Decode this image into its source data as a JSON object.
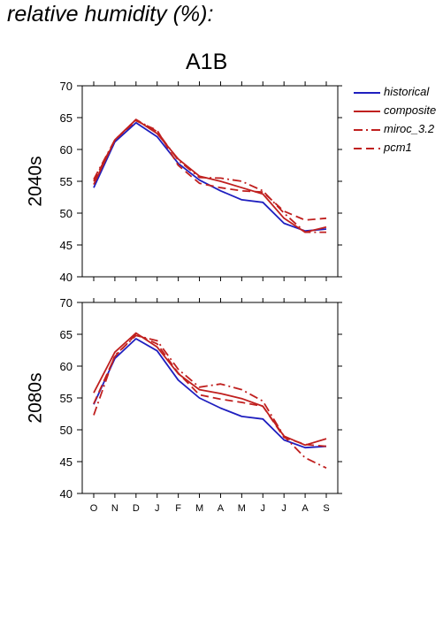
{
  "heading": "relative humidity (%):",
  "scenario": "A1B",
  "legend": [
    {
      "name": "historical",
      "color": "#1f1fbf",
      "dash": "solid"
    },
    {
      "name": "composite",
      "color": "#c0201f",
      "dash": "solid"
    },
    {
      "name": "miroc_3.2",
      "color": "#c0201f",
      "dash": "dashdot"
    },
    {
      "name": "pcm1",
      "color": "#c0201f",
      "dash": "dashed"
    }
  ],
  "chart_data": [
    {
      "type": "line",
      "ylabel": "2040s",
      "categories": [
        "O",
        "N",
        "D",
        "J",
        "F",
        "M",
        "A",
        "M",
        "J",
        "J",
        "A",
        "S"
      ],
      "ylim": [
        40,
        70
      ],
      "yticks": [
        40,
        45,
        50,
        55,
        60,
        65,
        70
      ],
      "series": [
        {
          "name": "historical",
          "values": [
            54.0,
            61.2,
            64.2,
            62.0,
            57.8,
            55.2,
            53.5,
            52.1,
            51.7,
            48.4,
            47.2,
            47.5
          ]
        },
        {
          "name": "composite",
          "values": [
            54.5,
            61.5,
            64.7,
            62.5,
            58.5,
            55.8,
            55.0,
            54.0,
            53.0,
            49.2,
            47.0,
            47.8
          ]
        },
        {
          "name": "miroc_3.2",
          "values": [
            55.3,
            61.5,
            64.7,
            62.8,
            58.3,
            55.6,
            55.5,
            55.0,
            53.5,
            50.0,
            47.0,
            47.0
          ]
        },
        {
          "name": "pcm1",
          "values": [
            55.0,
            61.5,
            64.5,
            63.0,
            57.5,
            54.7,
            54.0,
            53.5,
            53.3,
            50.3,
            48.9,
            49.2
          ]
        }
      ]
    },
    {
      "type": "line",
      "ylabel": "2080s",
      "categories": [
        "O",
        "N",
        "D",
        "J",
        "F",
        "M",
        "A",
        "M",
        "J",
        "J",
        "A",
        "S"
      ],
      "ylim": [
        40,
        70
      ],
      "yticks": [
        40,
        45,
        50,
        55,
        60,
        65,
        70
      ],
      "series": [
        {
          "name": "historical",
          "values": [
            54.0,
            61.2,
            64.3,
            62.4,
            57.8,
            55.0,
            53.4,
            52.1,
            51.7,
            48.4,
            47.2,
            47.4
          ]
        },
        {
          "name": "composite",
          "values": [
            55.8,
            62.2,
            65.2,
            63.0,
            58.8,
            56.3,
            55.7,
            54.9,
            53.7,
            49.0,
            47.6,
            48.6
          ]
        },
        {
          "name": "miroc_3.2",
          "values": [
            52.3,
            61.7,
            64.8,
            64.0,
            59.5,
            56.7,
            57.2,
            56.3,
            54.5,
            49.0,
            45.6,
            44.0
          ]
        },
        {
          "name": "pcm1",
          "values": [
            54.1,
            61.5,
            65.0,
            63.5,
            58.9,
            55.5,
            54.8,
            54.3,
            53.7,
            48.8,
            47.7,
            47.4
          ]
        }
      ]
    }
  ]
}
